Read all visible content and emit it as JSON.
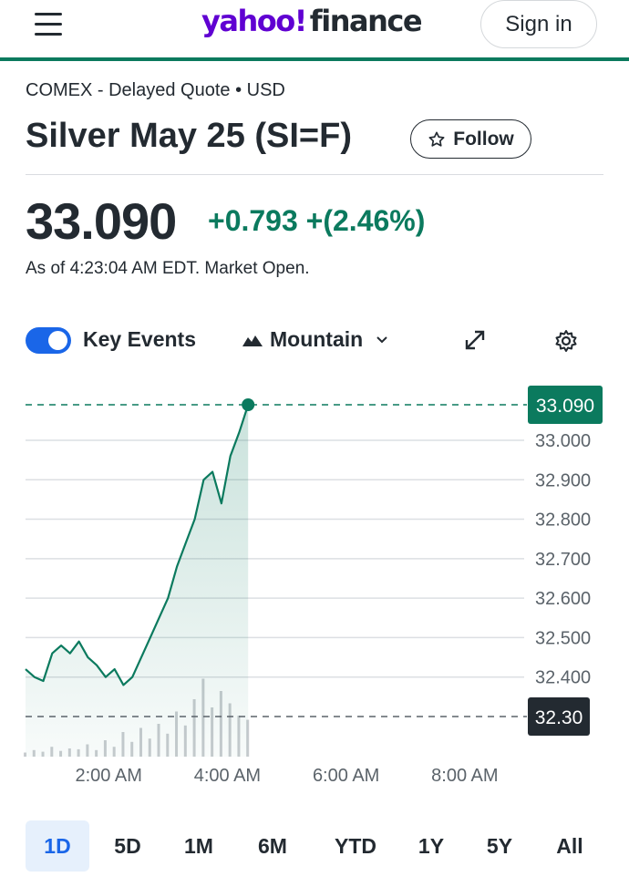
{
  "header": {
    "logo_yahoo": "yahoo!",
    "logo_finance": "finance",
    "signin_label": "Sign in"
  },
  "quote": {
    "exchange": "COMEX - Delayed Quote • USD",
    "title": "Silver May 25 (SI=F)",
    "follow_label": "Follow",
    "price": "33.090",
    "change": "+0.793 +(2.46%)",
    "asof": "As of 4:23:04 AM EDT. Market Open."
  },
  "toolbar": {
    "key_events_label": "Key Events",
    "key_events_on": true,
    "chart_type_label": "Mountain"
  },
  "colors": {
    "accent_green": "#0b7a5e",
    "brand_purple": "#6001d2",
    "toggle_blue": "#1a66e8",
    "previous_close_badge": "#232a31"
  },
  "chart_data": {
    "type": "area",
    "x_tick_labels": [
      "2:00 AM",
      "4:00 AM",
      "6:00 AM",
      "8:00 AM"
    ],
    "y_tick_labels": [
      "33.000",
      "32.900",
      "32.800",
      "32.700",
      "32.600",
      "32.500",
      "32.400"
    ],
    "y_ticks": [
      33.0,
      32.9,
      32.8,
      32.7,
      32.6,
      32.5,
      32.4
    ],
    "ylim": [
      32.3,
      33.09
    ],
    "x_range_hours": [
      0.6,
      9.0
    ],
    "current_price_label": "33.090",
    "current_price": 33.09,
    "previous_close_label": "32.30",
    "previous_close": 32.3,
    "series": [
      {
        "x": [
          0.6,
          0.75,
          0.9,
          1.05,
          1.2,
          1.35,
          1.5,
          1.65,
          1.8,
          1.95,
          2.1,
          2.25,
          2.4,
          2.55,
          2.7,
          2.85,
          3.0,
          3.15,
          3.3,
          3.45,
          3.6,
          3.75,
          3.9,
          4.05,
          4.2,
          4.35
        ],
        "y": [
          32.42,
          32.4,
          32.39,
          32.46,
          32.48,
          32.46,
          32.49,
          32.45,
          32.43,
          32.4,
          32.42,
          32.38,
          32.4,
          32.45,
          32.5,
          32.55,
          32.6,
          32.68,
          32.74,
          32.8,
          32.9,
          32.92,
          32.84,
          32.96,
          33.02,
          33.09
        ]
      }
    ],
    "volume": [
      0.05,
      0.08,
      0.06,
      0.12,
      0.07,
      0.1,
      0.09,
      0.15,
      0.08,
      0.2,
      0.12,
      0.3,
      0.18,
      0.35,
      0.22,
      0.4,
      0.28,
      0.55,
      0.38,
      0.7,
      0.95,
      0.6,
      0.8,
      0.65,
      0.5,
      0.45
    ]
  },
  "ranges": {
    "active": "1D",
    "items": [
      "1D",
      "5D",
      "1M",
      "6M",
      "YTD",
      "1Y",
      "5Y",
      "All"
    ]
  }
}
